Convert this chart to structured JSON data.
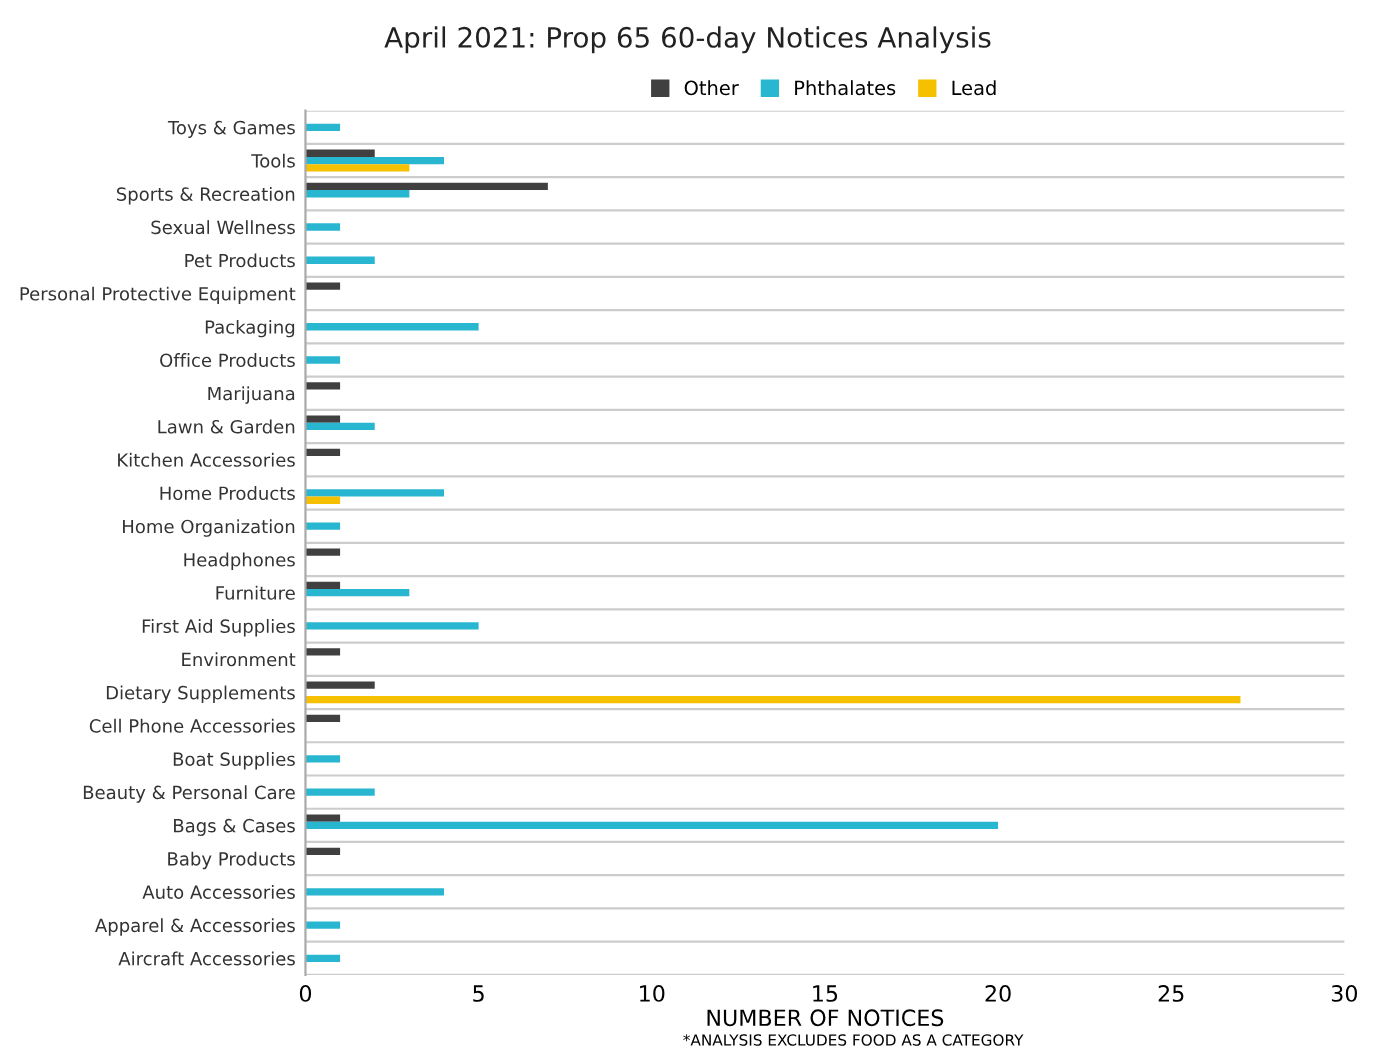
{
  "chart_data": {
    "type": "bar",
    "orientation": "horizontal",
    "title": "April 2021: Prop 65 60-day Notices Analysis",
    "xlabel": "NUMBER OF NOTICES",
    "annotations": [
      "*ANALYSIS EXCLUDES FOOD AS A CATEGORY"
    ],
    "categories": [
      "Toys & Games",
      "Tools",
      "Sports & Recreation",
      "Sexual Wellness",
      "Pet Products",
      "Personal Protective Equipment",
      "Packaging",
      "Office Products",
      "Marijuana",
      "Lawn & Garden",
      "Kitchen Accessories",
      "Home Products",
      "Home Organization",
      "Headphones",
      "Furniture",
      "First Aid Supplies",
      "Environment",
      "Dietary Supplements",
      "Cell Phone Accessories",
      "Boat Supplies",
      "Beauty & Personal Care",
      "Bags & Cases",
      "Baby Products",
      "Auto Accessories",
      "Apparel & Accessories",
      "Aircraft Accessories"
    ],
    "series": [
      {
        "name": "Other",
        "color": "#404040",
        "values": [
          null,
          2,
          7,
          null,
          null,
          1,
          null,
          null,
          1,
          1,
          1,
          null,
          null,
          1,
          1,
          null,
          1,
          2,
          1,
          null,
          null,
          1,
          1,
          null,
          null,
          null
        ]
      },
      {
        "name": "Phthalates",
        "color": "#29b6d0",
        "values": [
          1,
          4,
          3,
          1,
          2,
          null,
          5,
          1,
          null,
          2,
          null,
          4,
          1,
          null,
          3,
          5,
          null,
          null,
          null,
          1,
          2,
          20,
          null,
          4,
          1,
          1
        ]
      },
      {
        "name": "Lead",
        "color": "#f5c000",
        "values": [
          null,
          3,
          null,
          null,
          null,
          null,
          null,
          null,
          null,
          null,
          null,
          1,
          null,
          null,
          null,
          null,
          null,
          27,
          null,
          null,
          null,
          null,
          null,
          null,
          null,
          null
        ]
      }
    ],
    "xlim": [
      0,
      30
    ],
    "xticks": [
      0,
      5,
      10,
      15,
      20,
      25,
      30
    ],
    "grid": "y",
    "legend": "top"
  }
}
